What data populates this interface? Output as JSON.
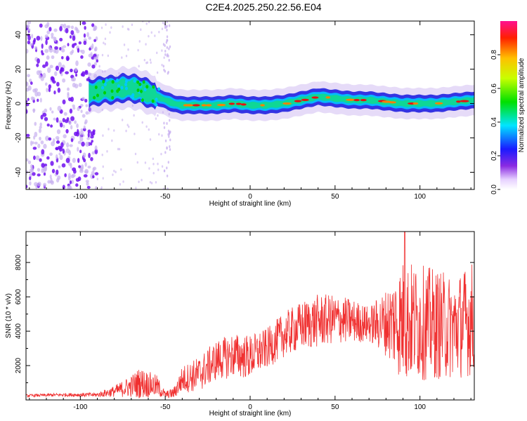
{
  "title": "C2E4.2025.250.22.56.E04",
  "colors": {
    "snr_line": "#f03030",
    "ridge_core": "#e81010",
    "ridge_halo": "#10d890",
    "ridge_outer": "#2020e0",
    "noise": "#7010f0",
    "noise_light": "#c8b0f0"
  },
  "chart_data": [
    {
      "type": "heatmap",
      "name": "spectrogram",
      "xlabel": "Height of straight line (km)",
      "ylabel": "Frequency (Hz)",
      "xlim": [
        -132,
        132
      ],
      "ylim": [
        -50,
        48
      ],
      "xticks": [
        -100,
        -50,
        0,
        50,
        100
      ],
      "xtick_labels": [
        "-100",
        "-50",
        "0",
        "50",
        "100"
      ],
      "yticks": [
        -40,
        -20,
        0,
        20,
        40
      ],
      "ytick_labels": [
        "-40",
        "-20",
        "0",
        "20",
        "40"
      ],
      "noise_region_km": [
        -132,
        -90
      ],
      "noise_stripe_km": -49,
      "ridge": {
        "x": [
          -95,
          -90,
          -85,
          -80,
          -75,
          -70,
          -65,
          -60,
          -55,
          -50,
          -45,
          -40,
          -30,
          -20,
          -10,
          0,
          10,
          20,
          30,
          40,
          50,
          60,
          70,
          80,
          90,
          100,
          110,
          120,
          132
        ],
        "freq": [
          6,
          7,
          8,
          8,
          9,
          9,
          8,
          6,
          4,
          2,
          0,
          -1,
          -1,
          -1,
          0,
          -1,
          -1,
          0,
          2,
          4,
          3,
          2,
          2,
          1,
          0,
          0,
          0,
          1,
          2
        ]
      }
    },
    {
      "type": "colorbar",
      "name": "amplitude-colorbar",
      "label": "Normalized spectral amplitude",
      "range": [
        0,
        1
      ],
      "ticks": [
        0.0,
        0.2,
        0.4,
        0.6,
        0.8
      ],
      "tick_labels": [
        "0.0",
        "0.2",
        "0.4",
        "0.6",
        "0.8"
      ]
    },
    {
      "type": "line",
      "name": "snr",
      "xlabel": "Height of straight line (km)",
      "ylabel": "SNR (10 * v/v)",
      "xlim": [
        -132,
        132
      ],
      "ylim": [
        0,
        9800
      ],
      "xticks": [
        -100,
        -50,
        0,
        50,
        100
      ],
      "xtick_labels": [
        "-100",
        "-50",
        "0",
        "50",
        "100"
      ],
      "yticks": [
        2000,
        4000,
        6000,
        8000
      ],
      "ytick_labels": [
        "2000",
        "4000",
        "6000",
        "8000"
      ],
      "envelope": {
        "x": [
          -132,
          -110,
          -90,
          -80,
          -70,
          -65,
          -60,
          -55,
          -50,
          -45,
          -40,
          -30,
          -20,
          -10,
          0,
          10,
          20,
          30,
          40,
          50,
          60,
          70,
          80,
          90,
          100,
          110,
          120,
          132
        ],
        "mean": [
          250,
          300,
          300,
          500,
          800,
          1000,
          900,
          800,
          300,
          400,
          1200,
          1500,
          2300,
          2600,
          2500,
          3000,
          3800,
          4300,
          4600,
          4700,
          4600,
          4400,
          4500,
          4600,
          4500,
          4400,
          4200,
          4800
        ],
        "spread": [
          60,
          80,
          100,
          250,
          500,
          700,
          600,
          500,
          150,
          250,
          600,
          800,
          900,
          1000,
          1000,
          900,
          1000,
          1100,
          1200,
          1100,
          1000,
          800,
          1500,
          2800,
          2600,
          2500,
          2300,
          2600
        ]
      },
      "peak": {
        "x": 91,
        "y": 9800
      }
    }
  ]
}
